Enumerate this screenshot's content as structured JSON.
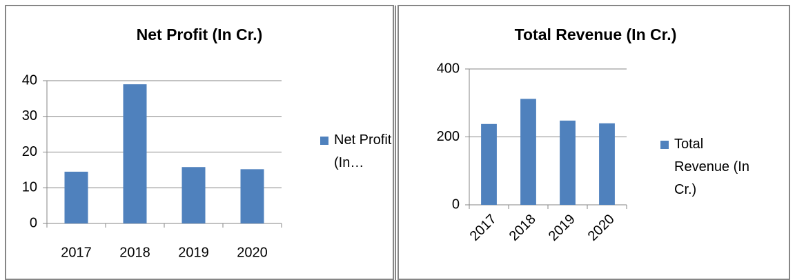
{
  "chart_data": [
    {
      "type": "bar",
      "title": "Net Profit (In Cr.)",
      "categories": [
        "2017",
        "2018",
        "2019",
        "2020"
      ],
      "series": [
        {
          "name": "Net Profit (In…",
          "color": "#4f81bd",
          "values": [
            14.5,
            39,
            15.8,
            15.2
          ]
        }
      ],
      "ylim": [
        0,
        40
      ],
      "yticks": [
        0,
        10,
        20,
        30,
        40
      ],
      "grid": true,
      "legend": "right"
    },
    {
      "type": "bar",
      "title": "Total Revenue (In Cr.)",
      "categories": [
        "2017",
        "2018",
        "2019",
        "2020"
      ],
      "series": [
        {
          "name": "Total Revenue (In Cr.)",
          "color": "#4f81bd",
          "values": [
            238,
            312,
            248,
            240
          ]
        }
      ],
      "ylim": [
        0,
        400
      ],
      "yticks": [
        0,
        200,
        400
      ],
      "grid": true,
      "legend": "right"
    }
  ]
}
